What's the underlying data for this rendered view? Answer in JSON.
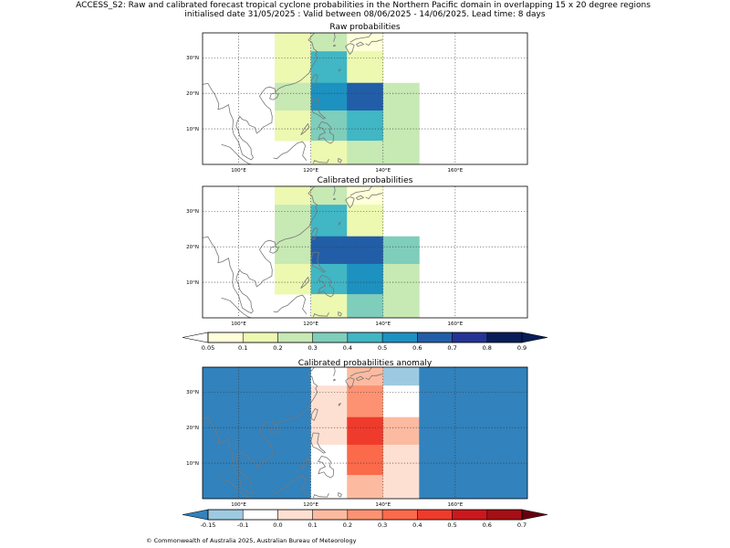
{
  "header": {
    "line1": "ACCESS_S2: Raw and calibrated forecast tropical cyclone probabilities in the Northern Pacific domain in overlapping 15 x 20 degree regions",
    "line2": "initialised date 31/05/2025 :  Valid between 08/06/2025 - 14/06/2025. Lead time: 8 days"
  },
  "maps": [
    {
      "title": "Raw probabilities",
      "cells": [
        [
          null,
          "#edf8b1",
          "#c7e9b4",
          "#ffffd9",
          null,
          null,
          null
        ],
        [
          null,
          "#edf8b1",
          "#41b6c4",
          "#edf8b1",
          null,
          null,
          null
        ],
        [
          null,
          "#c7e9b4",
          "#1d91c0",
          "#225ea8",
          "#c7e9b4",
          null,
          null
        ],
        [
          null,
          "#edf8b1",
          "#7fcdbb",
          "#41b6c4",
          "#c7e9b4",
          null,
          null
        ],
        [
          null,
          null,
          "#edf8b1",
          "#c7e9b4",
          "#c7e9b4",
          null,
          null
        ]
      ]
    },
    {
      "title": "Calibrated probabilities",
      "cells": [
        [
          null,
          "#edf8b1",
          "#c7e9b4",
          "#ffffd9",
          null,
          null,
          null
        ],
        [
          null,
          "#c7e9b4",
          "#41b6c4",
          "#edf8b1",
          null,
          null,
          null
        ],
        [
          null,
          "#c7e9b4",
          "#225ea8",
          "#225ea8",
          "#7fcdbb",
          null,
          null
        ],
        [
          null,
          "#edf8b1",
          "#41b6c4",
          "#1d91c0",
          "#c7e9b4",
          null,
          null
        ],
        [
          null,
          null,
          "#edf8b1",
          "#7fcdbb",
          "#c7e9b4",
          null,
          null
        ]
      ]
    },
    {
      "title": "Calibrated probabilities anomaly",
      "cells": [
        [
          "#3182bd",
          "#3182bd",
          "#ffffff",
          "#fcbba1",
          "#9ecae1",
          "#3182bd",
          "#3182bd"
        ],
        [
          "#3182bd",
          "#3182bd",
          "#fee0d2",
          "#fc9272",
          "#ffffff",
          "#3182bd",
          "#3182bd"
        ],
        [
          "#3182bd",
          "#3182bd",
          "#fee0d2",
          "#ef3b2c",
          "#fcbba1",
          "#3182bd",
          "#3182bd"
        ],
        [
          "#3182bd",
          "#3182bd",
          "#ffffff",
          "#fb6a4a",
          "#fee0d2",
          "#3182bd",
          "#3182bd"
        ],
        [
          "#3182bd",
          "#3182bd",
          "#ffffff",
          "#fcbba1",
          "#fee0d2",
          "#3182bd",
          "#3182bd"
        ]
      ]
    }
  ],
  "lat_ticks": [
    "10°N",
    "20°N",
    "30°N"
  ],
  "lon_ticks": [
    "100°E",
    "120°E",
    "140°E",
    "160°E"
  ],
  "colorbars": [
    {
      "labels": [
        "0.05",
        "0.1",
        "0.2",
        "0.3",
        "0.4",
        "0.5",
        "0.6",
        "0.7",
        "0.8",
        "0.9"
      ],
      "colors": [
        "#ffffd9",
        "#edf8b1",
        "#c7e9b4",
        "#7fcdbb",
        "#41b6c4",
        "#1d91c0",
        "#225ea8",
        "#253494",
        "#081d58"
      ],
      "under": "#ffffff",
      "over": "#081d58"
    },
    {
      "labels": [
        "-0.15",
        "-0.1",
        "0.0",
        "0.1",
        "0.2",
        "0.3",
        "0.4",
        "0.5",
        "0.6",
        "0.7"
      ],
      "colors": [
        "#9ecae1",
        "#ffffff",
        "#fee0d2",
        "#fcbba1",
        "#fc9272",
        "#fb6a4a",
        "#ef3b2c",
        "#cb181d",
        "#a50f15"
      ],
      "under": "#3182bd",
      "over": "#67000d"
    }
  ],
  "footer": "© Commonwealth of Australia 2025, Australian Bureau of Meteorology"
}
